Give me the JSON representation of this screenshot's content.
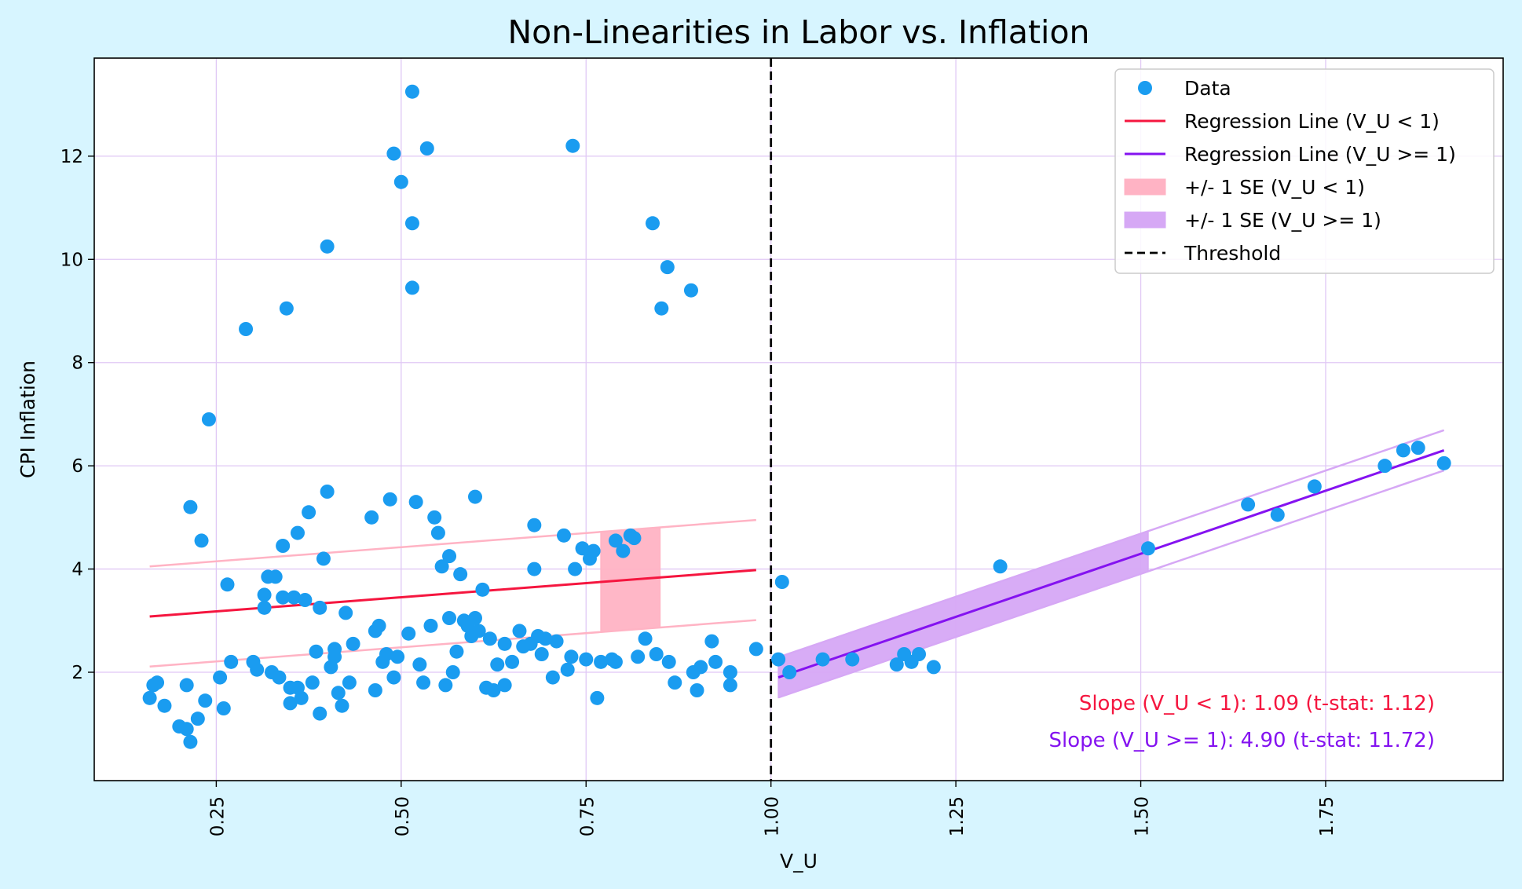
{
  "chart_data": {
    "type": "scatter",
    "title": "Non-Linearities in Labor vs. Inflation",
    "xlabel": "V_U",
    "ylabel": "CPI Inflation",
    "xlim": [
      0.085,
      1.99
    ],
    "ylim": [
      -0.1,
      13.9
    ],
    "xticks": [
      0.25,
      0.5,
      0.75,
      1.0,
      1.25,
      1.5,
      1.75
    ],
    "xtick_labels": [
      "0.25",
      "0.50",
      "0.75",
      "1.00",
      "1.25",
      "1.50",
      "1.75"
    ],
    "yticks": [
      2,
      4,
      6,
      8,
      10,
      12
    ],
    "ytick_labels": [
      "2",
      "4",
      "6",
      "8",
      "10",
      "12"
    ],
    "grid": true,
    "legend_position": "top-right",
    "colors": {
      "background": "#d7f5ff",
      "plot_background": "#ffffff",
      "grid": "#e0c8f5",
      "data": "#1a9cf0",
      "low_line": "#f5163f",
      "low_band": "#ffb3c4",
      "high_line": "#8412f0",
      "high_band": "#d6a8f5",
      "threshold": "#000000"
    },
    "legend": [
      {
        "label": "Data",
        "kind": "marker",
        "color": "#1a9cf0"
      },
      {
        "label": "Regression Line (V_U < 1)",
        "kind": "line",
        "color": "#f5163f"
      },
      {
        "label": "Regression Line (V_U >= 1)",
        "kind": "line",
        "color": "#8412f0"
      },
      {
        "label": "+/- 1 SE (V_U < 1)",
        "kind": "patch",
        "color": "#ffb3c4"
      },
      {
        "label": "+/- 1 SE (V_U >= 1)",
        "kind": "patch",
        "color": "#d6a8f5"
      },
      {
        "label": "Threshold",
        "kind": "dashed",
        "color": "#000000"
      }
    ],
    "threshold": 1.0,
    "regression_low": {
      "x": [
        0.16,
        0.98
      ],
      "y": [
        3.08,
        3.98
      ],
      "se": 0.97,
      "band_x": [
        0.77,
        0.85
      ]
    },
    "regression_high": {
      "x": [
        1.01,
        1.91
      ],
      "y": [
        1.9,
        6.3
      ],
      "se": 0.39,
      "band_x": [
        1.01,
        1.51
      ]
    },
    "annotations": [
      {
        "text": "Slope (V_U < 1): 1.09 (t-stat: 1.12)",
        "color": "#f5163f"
      },
      {
        "text": "Slope (V_U >= 1): 4.90 (t-stat: 11.72)",
        "color": "#8412f0"
      }
    ],
    "series": [
      {
        "name": "Data",
        "points": [
          [
            0.16,
            1.5
          ],
          [
            0.165,
            1.75
          ],
          [
            0.17,
            1.8
          ],
          [
            0.18,
            1.35
          ],
          [
            0.2,
            0.95
          ],
          [
            0.21,
            0.9
          ],
          [
            0.21,
            1.75
          ],
          [
            0.215,
            0.65
          ],
          [
            0.215,
            5.2
          ],
          [
            0.225,
            1.1
          ],
          [
            0.23,
            4.55
          ],
          [
            0.235,
            1.45
          ],
          [
            0.24,
            6.9
          ],
          [
            0.255,
            1.9
          ],
          [
            0.26,
            1.3
          ],
          [
            0.265,
            3.7
          ],
          [
            0.27,
            2.2
          ],
          [
            0.29,
            8.65
          ],
          [
            0.3,
            2.2
          ],
          [
            0.305,
            2.05
          ],
          [
            0.315,
            3.25
          ],
          [
            0.315,
            3.5
          ],
          [
            0.32,
            3.85
          ],
          [
            0.325,
            2.0
          ],
          [
            0.33,
            3.85
          ],
          [
            0.335,
            1.9
          ],
          [
            0.34,
            4.45
          ],
          [
            0.34,
            3.45
          ],
          [
            0.345,
            9.05
          ],
          [
            0.35,
            1.4
          ],
          [
            0.35,
            1.7
          ],
          [
            0.355,
            3.45
          ],
          [
            0.36,
            1.7
          ],
          [
            0.36,
            4.7
          ],
          [
            0.365,
            1.5
          ],
          [
            0.37,
            3.4
          ],
          [
            0.375,
            5.1
          ],
          [
            0.38,
            1.8
          ],
          [
            0.385,
            2.4
          ],
          [
            0.39,
            1.2
          ],
          [
            0.39,
            3.25
          ],
          [
            0.395,
            4.2
          ],
          [
            0.4,
            10.25
          ],
          [
            0.4,
            5.5
          ],
          [
            0.405,
            2.1
          ],
          [
            0.41,
            2.45
          ],
          [
            0.41,
            2.3
          ],
          [
            0.415,
            1.6
          ],
          [
            0.42,
            1.35
          ],
          [
            0.425,
            3.15
          ],
          [
            0.43,
            1.8
          ],
          [
            0.435,
            2.55
          ],
          [
            0.46,
            5.0
          ],
          [
            0.465,
            1.65
          ],
          [
            0.465,
            2.8
          ],
          [
            0.47,
            2.9
          ],
          [
            0.475,
            2.2
          ],
          [
            0.48,
            2.35
          ],
          [
            0.485,
            5.35
          ],
          [
            0.49,
            1.9
          ],
          [
            0.49,
            12.05
          ],
          [
            0.495,
            2.3
          ],
          [
            0.5,
            11.5
          ],
          [
            0.51,
            2.75
          ],
          [
            0.515,
            9.45
          ],
          [
            0.515,
            10.7
          ],
          [
            0.515,
            13.25
          ],
          [
            0.52,
            5.3
          ],
          [
            0.525,
            2.15
          ],
          [
            0.53,
            1.8
          ],
          [
            0.535,
            12.15
          ],
          [
            0.54,
            2.9
          ],
          [
            0.545,
            5.0
          ],
          [
            0.55,
            4.7
          ],
          [
            0.555,
            4.05
          ],
          [
            0.56,
            1.75
          ],
          [
            0.565,
            3.05
          ],
          [
            0.565,
            4.25
          ],
          [
            0.57,
            2.0
          ],
          [
            0.575,
            2.4
          ],
          [
            0.58,
            3.9
          ],
          [
            0.585,
            3.0
          ],
          [
            0.59,
            2.9
          ],
          [
            0.595,
            2.7
          ],
          [
            0.6,
            5.4
          ],
          [
            0.6,
            3.05
          ],
          [
            0.605,
            2.8
          ],
          [
            0.61,
            3.6
          ],
          [
            0.615,
            1.7
          ],
          [
            0.62,
            2.65
          ],
          [
            0.625,
            1.65
          ],
          [
            0.63,
            2.15
          ],
          [
            0.64,
            1.75
          ],
          [
            0.64,
            2.55
          ],
          [
            0.65,
            2.2
          ],
          [
            0.66,
            2.8
          ],
          [
            0.665,
            2.5
          ],
          [
            0.675,
            2.55
          ],
          [
            0.68,
            4.85
          ],
          [
            0.68,
            4.0
          ],
          [
            0.685,
            2.7
          ],
          [
            0.69,
            2.35
          ],
          [
            0.695,
            2.65
          ],
          [
            0.705,
            1.9
          ],
          [
            0.71,
            2.6
          ],
          [
            0.72,
            4.65
          ],
          [
            0.725,
            2.05
          ],
          [
            0.73,
            2.3
          ],
          [
            0.732,
            12.2
          ],
          [
            0.735,
            4.0
          ],
          [
            0.745,
            4.4
          ],
          [
            0.75,
            2.25
          ],
          [
            0.755,
            4.2
          ],
          [
            0.76,
            4.35
          ],
          [
            0.765,
            1.5
          ],
          [
            0.77,
            2.2
          ],
          [
            0.785,
            2.25
          ],
          [
            0.79,
            4.55
          ],
          [
            0.79,
            2.2
          ],
          [
            0.8,
            4.35
          ],
          [
            0.81,
            4.65
          ],
          [
            0.815,
            4.6
          ],
          [
            0.82,
            2.3
          ],
          [
            0.83,
            2.65
          ],
          [
            0.84,
            10.7
          ],
          [
            0.845,
            2.35
          ],
          [
            0.852,
            9.05
          ],
          [
            0.86,
            9.85
          ],
          [
            0.862,
            2.2
          ],
          [
            0.87,
            1.8
          ],
          [
            0.892,
            9.4
          ],
          [
            0.895,
            2.0
          ],
          [
            0.9,
            1.65
          ],
          [
            0.905,
            2.1
          ],
          [
            0.92,
            2.6
          ],
          [
            0.925,
            2.2
          ],
          [
            0.945,
            2.0
          ],
          [
            0.945,
            1.75
          ],
          [
            0.98,
            2.45
          ],
          [
            1.01,
            2.25
          ],
          [
            1.015,
            3.75
          ],
          [
            1.025,
            2.0
          ],
          [
            1.07,
            2.25
          ],
          [
            1.11,
            2.25
          ],
          [
            1.17,
            2.15
          ],
          [
            1.18,
            2.35
          ],
          [
            1.19,
            2.2
          ],
          [
            1.2,
            2.35
          ],
          [
            1.22,
            2.1
          ],
          [
            1.31,
            4.05
          ],
          [
            1.51,
            4.4
          ],
          [
            1.645,
            5.25
          ],
          [
            1.685,
            5.05
          ],
          [
            1.735,
            5.6
          ],
          [
            1.83,
            6.0
          ],
          [
            1.855,
            6.3
          ],
          [
            1.875,
            6.35
          ],
          [
            1.91,
            6.05
          ]
        ]
      }
    ]
  }
}
